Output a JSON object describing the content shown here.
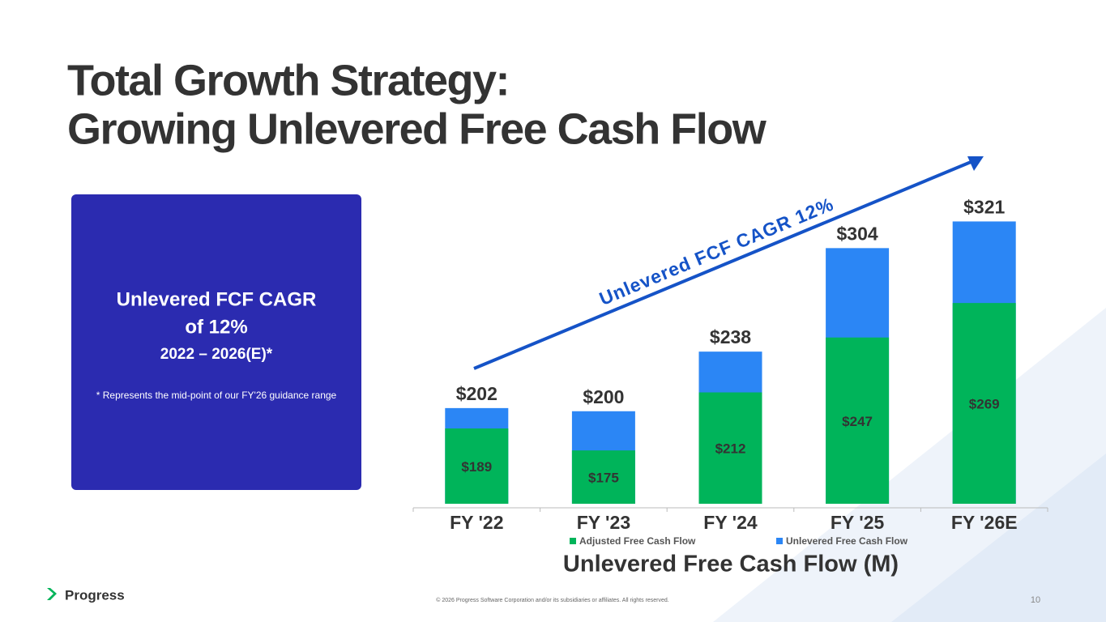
{
  "slide": {
    "title": [
      "Total Growth Strategy:",
      "Growing Unlevered Free Cash Flow"
    ],
    "box": {
      "heading": [
        "Unlevered FCF CAGR",
        "of 12%"
      ],
      "period": "2022 – 2026(E)*",
      "note": "* Represents the mid-point of our FY'26 guidance range"
    },
    "logo": "Progress",
    "footer": "© 2026 Progress Software Corporation and/or its subsidiaries or affiliates. All rights reserved.",
    "page_number": "10"
  },
  "chart_data": {
    "type": "bar",
    "stacking": "overlay",
    "x_label": "Unlevered Free Cash Flow (M)",
    "annotation": "Unlevered FCF CAGR 12%",
    "categories": [
      "FY '22",
      "FY '23",
      "FY '24",
      "FY '25",
      "FY '26E"
    ],
    "ylim": [
      141,
      330
    ],
    "series": [
      {
        "name": "Unlevered Free Cash Flow",
        "color": "#2b86f5",
        "values": [
          202,
          200,
          238,
          304,
          321
        ],
        "value_labels": [
          "$202",
          "$200",
          "$238",
          "$304",
          "$321"
        ]
      },
      {
        "name": "Adjusted Free Cash Flow",
        "color": "#00b45a",
        "values": [
          189,
          175,
          212,
          247,
          269
        ],
        "value_labels": [
          "$189",
          "$175",
          "$212",
          "$247",
          "$269"
        ]
      }
    ],
    "legend_order": [
      1,
      0
    ]
  }
}
